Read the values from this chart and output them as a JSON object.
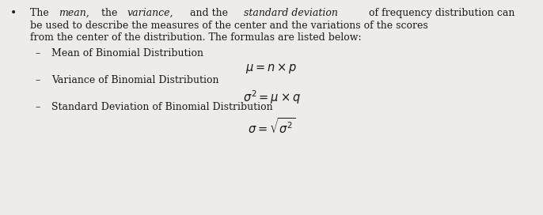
{
  "bg_color": "#edecea",
  "text_color": "#1a1a1a",
  "bullet": "•",
  "dash": "–",
  "para_line1_parts": [
    [
      "The ",
      false
    ],
    [
      "mean,",
      true
    ],
    [
      " the ",
      false
    ],
    [
      "variance,",
      true
    ],
    [
      " and the ",
      false
    ],
    [
      "standard deviation",
      true
    ],
    [
      " of frequency distribution can",
      false
    ]
  ],
  "para_line2": "be used to describe the measures of the center and the variations of the scores",
  "para_line3": "from the center of the distribution. The formulas are listed below:",
  "sec1_label": "Mean of Binomial Distribution",
  "sec1_formula": "$\\mu = n \\times p$",
  "sec2_label": "Variance of Binomial Distribution",
  "sec2_formula": "$\\sigma^2 = \\mu \\times q$",
  "sec3_label": "Standard Deviation of Binomial Distribution",
  "sec3_formula": "$\\sigma = \\sqrt{\\sigma^2}$",
  "body_fontsize": 9.0,
  "formula_fontsize": 10.5,
  "bullet_fontsize": 10.0,
  "fig_width": 6.86,
  "fig_height": 2.72,
  "dpi": 100
}
